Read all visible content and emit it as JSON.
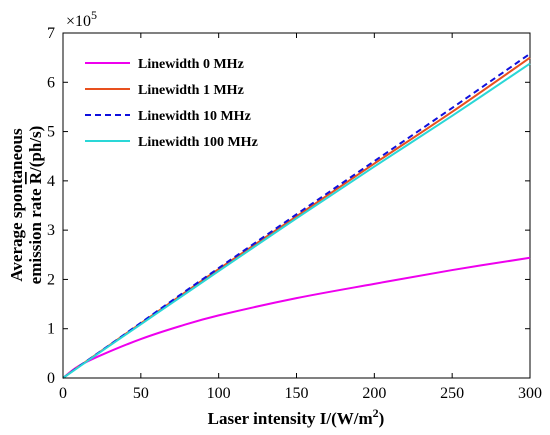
{
  "chart_data": {
    "type": "line",
    "xlabel_main": "Laser intensity I/(W/m",
    "xlabel_sup": "2",
    "xlabel_end": ")",
    "ylabel_line1": "Average spontaneous",
    "ylabel_line2": "emission rate",
    "ylabel_symbol": "R",
    "ylabel_unit": "/(ph/s)",
    "exponent_prefix": "×10",
    "exponent_power": "5",
    "xlim": [
      0,
      300
    ],
    "ylim": [
      0,
      7
    ],
    "x_ticks": [
      0,
      50,
      100,
      150,
      200,
      250,
      300
    ],
    "y_ticks": [
      0,
      1,
      2,
      3,
      4,
      5,
      6,
      7
    ],
    "legend_position": "top-left",
    "grid": false,
    "x": [
      0,
      10,
      25,
      50,
      75,
      100,
      150,
      200,
      250,
      300
    ],
    "series": [
      {
        "name": "Linewidth 0 MHz",
        "color": "#ee00ee",
        "dash": "solid",
        "values": [
          0,
          0.24,
          0.47,
          0.79,
          1.05,
          1.27,
          1.62,
          1.91,
          2.19,
          2.44
        ]
      },
      {
        "name": "Linewidth 1 MHz",
        "color": "#e8501e",
        "dash": "solid",
        "values": [
          0,
          0.23,
          0.56,
          1.11,
          1.66,
          2.21,
          3.28,
          4.35,
          5.4,
          6.5
        ]
      },
      {
        "name": "Linewidth 10 MHz",
        "color": "#1010dd",
        "dash": "dashed",
        "values": [
          0,
          0.23,
          0.56,
          1.12,
          1.68,
          2.23,
          3.32,
          4.4,
          5.48,
          6.58
        ]
      },
      {
        "name": "Linewidth 100 MHz",
        "color": "#2ad7d7",
        "dash": "solid",
        "values": [
          0,
          0.22,
          0.55,
          1.09,
          1.63,
          2.17,
          3.24,
          4.29,
          5.32,
          6.38
        ]
      }
    ]
  }
}
